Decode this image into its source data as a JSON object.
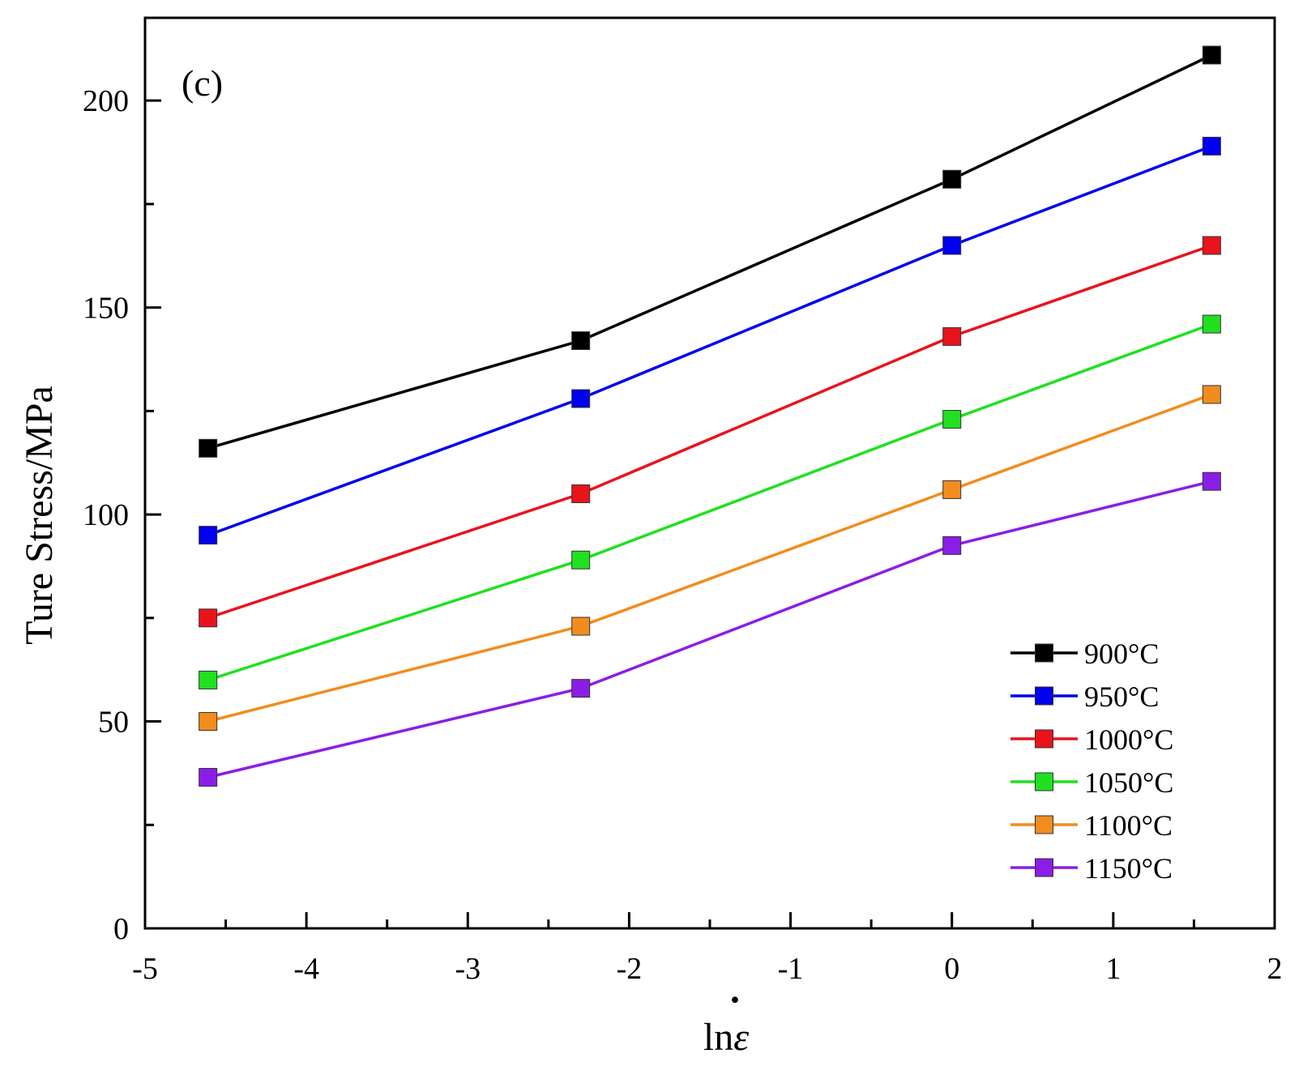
{
  "chart_data": {
    "type": "line",
    "panel_label": "(c)",
    "xlabel_prefix": "ln",
    "xlabel_symbol": "ε",
    "xlabel_symbol_dot": "·",
    "ylabel": "Ture Stress/MPa",
    "xlim": [
      -5,
      2
    ],
    "ylim": [
      0,
      220
    ],
    "x_ticks": [
      -5,
      -4,
      -3,
      -2,
      -1,
      0,
      1,
      2
    ],
    "x_tick_labels": [
      "-5",
      "-4",
      "-3",
      "-2",
      "-1",
      "0",
      "1",
      "2"
    ],
    "y_ticks": [
      0,
      50,
      100,
      150,
      200
    ],
    "y_tick_labels": [
      "0",
      "50",
      "100",
      "150",
      "200"
    ],
    "x": [
      -4.61,
      -2.3,
      0,
      1.61
    ],
    "series": [
      {
        "name": "900°C",
        "color": "#000000",
        "values": [
          116,
          142,
          181,
          211
        ]
      },
      {
        "name": "950°C",
        "color": "#0000ee",
        "values": [
          95,
          128,
          165,
          189
        ]
      },
      {
        "name": "1000°C",
        "color": "#e8141c",
        "values": [
          75,
          105,
          143,
          165
        ]
      },
      {
        "name": "1050°C",
        "color": "#20e020",
        "values": [
          60,
          89,
          123,
          146
        ]
      },
      {
        "name": "1100°C",
        "color": "#f28c1e",
        "values": [
          50,
          73,
          106,
          129
        ]
      },
      {
        "name": "1150°C",
        "color": "#8a1ee6",
        "values": [
          36.5,
          58,
          92.5,
          108
        ]
      }
    ],
    "legend_position": "bottom-right",
    "grid": false
  }
}
